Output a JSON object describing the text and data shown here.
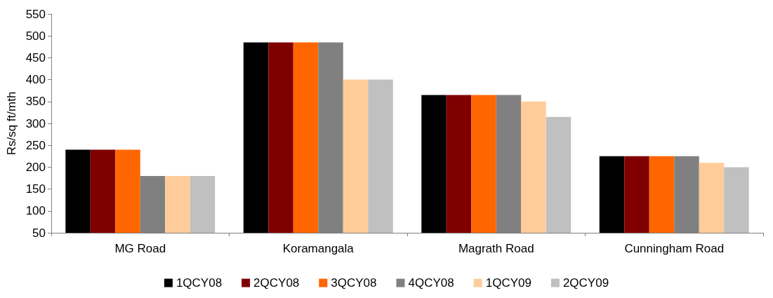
{
  "chart_data": {
    "type": "bar",
    "ylabel": "Rs/sq ft/mth",
    "categories": [
      "MG Road",
      "Koramangala",
      "Magrath Road",
      "Cunningham Road"
    ],
    "series": [
      {
        "name": "1QCY08",
        "color": "#000000",
        "values": [
          240,
          485,
          365,
          225
        ]
      },
      {
        "name": "2QCY08",
        "color": "#800000",
        "values": [
          240,
          485,
          365,
          225
        ]
      },
      {
        "name": "3QCY08",
        "color": "#ff6600",
        "values": [
          240,
          485,
          365,
          225
        ]
      },
      {
        "name": "4QCY08",
        "color": "#808080",
        "values": [
          180,
          485,
          365,
          225
        ]
      },
      {
        "name": "1QCY09",
        "color": "#ffcc99",
        "values": [
          180,
          400,
          350,
          210
        ]
      },
      {
        "name": "2QCY09",
        "color": "#c0c0c0",
        "values": [
          180,
          400,
          315,
          200
        ]
      }
    ],
    "ylim": [
      50,
      550
    ],
    "yticks": [
      50,
      100,
      150,
      200,
      250,
      300,
      350,
      400,
      450,
      500,
      550
    ],
    "grid": false,
    "legend": "bottom"
  }
}
